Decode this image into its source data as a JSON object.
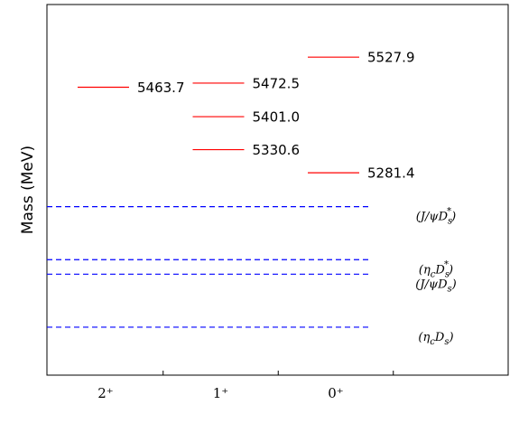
{
  "chart_data": {
    "type": "level",
    "ylabel": "Mass (MeV)",
    "ylim": [
      4850,
      5640
    ],
    "categories": [
      "2⁺",
      "1⁺",
      "0⁺"
    ],
    "level_color": "#ff0000",
    "levels": [
      {
        "values": [
          5463.7
        ],
        "value_labels": [
          "5463.7"
        ]
      },
      {
        "values": [
          5472.5,
          5401.0,
          5330.6
        ],
        "value_labels": [
          "5472.5",
          "5401.0",
          "5330.6"
        ]
      },
      {
        "values": [
          5527.9,
          5281.4
        ],
        "value_labels": [
          "5527.9",
          "5281.4"
        ]
      }
    ],
    "threshold_color": "#0000ff",
    "thresholds": [
      {
        "value": 5209.1,
        "label": [
          {
            "t": "(J/ψD"
          },
          {
            "t": "s",
            "pos": "sub"
          },
          {
            "t": "*",
            "pos": "sup"
          },
          {
            "t": ")"
          }
        ]
      },
      {
        "value": 5096.1,
        "label": [
          {
            "t": "(η"
          },
          {
            "t": "c",
            "pos": "sub"
          },
          {
            "t": "D"
          },
          {
            "t": "s",
            "pos": "sub"
          },
          {
            "t": "*",
            "pos": "sup"
          },
          {
            "t": ")"
          }
        ]
      },
      {
        "value": 5065.2,
        "label": [
          {
            "t": "(J/ψD"
          },
          {
            "t": "s",
            "pos": "sub"
          },
          {
            "t": ")"
          }
        ]
      },
      {
        "value": 4952.2,
        "label": [
          {
            "t": "(η"
          },
          {
            "t": "c",
            "pos": "sub"
          },
          {
            "t": "D"
          },
          {
            "t": "s",
            "pos": "sub"
          },
          {
            "t": ")"
          }
        ]
      }
    ]
  }
}
